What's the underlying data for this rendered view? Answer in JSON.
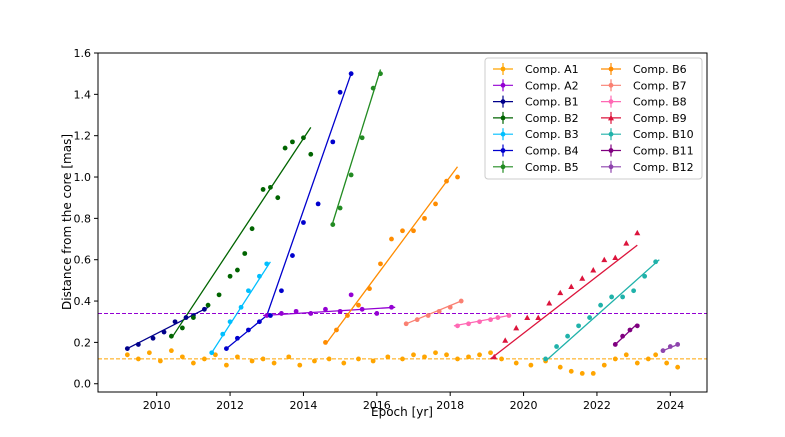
{
  "chart_data": {
    "type": "scatter",
    "title": "",
    "xlabel": "Epoch [yr]",
    "ylabel": "Distance from the core [mas]",
    "xlim": [
      2008.4,
      2025.0
    ],
    "ylim": [
      -0.04,
      1.6
    ],
    "xticks": [
      2010,
      2012,
      2014,
      2016,
      2018,
      2020,
      2022,
      2024
    ],
    "yticks": [
      0.0,
      0.2,
      0.4,
      0.6,
      0.8,
      1.0,
      1.2,
      1.4,
      1.6
    ],
    "grid": false,
    "legend_position": "top-right",
    "hlines": [
      {
        "y": 0.34,
        "color": "#9400d3",
        "style": "dashed"
      },
      {
        "y": 0.12,
        "color": "#ffa500",
        "style": "dashed"
      }
    ],
    "series": [
      {
        "name": "Comp. A1",
        "color": "#ffa500",
        "marker": "circle",
        "x": [
          2009.2,
          2009.5,
          2009.8,
          2010.1,
          2010.4,
          2010.7,
          2011.0,
          2011.3,
          2011.6,
          2011.9,
          2012.2,
          2012.6,
          2012.9,
          2013.2,
          2013.6,
          2013.9,
          2014.3,
          2014.7,
          2015.1,
          2015.5,
          2015.9,
          2016.3,
          2016.7,
          2017.0,
          2017.3,
          2017.6,
          2017.9,
          2018.2,
          2018.5,
          2018.8,
          2019.1,
          2019.4,
          2019.8,
          2020.2,
          2020.6,
          2021.0,
          2021.3,
          2021.6,
          2021.9,
          2022.2,
          2022.5,
          2022.8,
          2023.1,
          2023.4,
          2023.6,
          2023.9,
          2024.2
        ],
        "y": [
          0.14,
          0.12,
          0.15,
          0.11,
          0.16,
          0.13,
          0.1,
          0.12,
          0.14,
          0.09,
          0.13,
          0.11,
          0.12,
          0.1,
          0.13,
          0.09,
          0.11,
          0.12,
          0.1,
          0.12,
          0.11,
          0.13,
          0.12,
          0.14,
          0.13,
          0.15,
          0.14,
          0.12,
          0.13,
          0.14,
          0.15,
          0.12,
          0.1,
          0.09,
          0.11,
          0.08,
          0.06,
          0.05,
          0.05,
          0.09,
          0.12,
          0.14,
          0.1,
          0.12,
          0.14,
          0.1,
          0.08
        ],
        "fit": null
      },
      {
        "name": "Comp. A2",
        "color": "#9400d3",
        "marker": "circle",
        "x": [
          2013.0,
          2013.4,
          2013.8,
          2014.2,
          2014.6,
          2015.0,
          2015.3,
          2015.6,
          2016.0,
          2016.4
        ],
        "y": [
          0.33,
          0.34,
          0.35,
          0.34,
          0.36,
          0.35,
          0.43,
          0.36,
          0.34,
          0.37
        ],
        "fit": [
          [
            2012.9,
            0.33
          ],
          [
            2016.5,
            0.37
          ]
        ]
      },
      {
        "name": "Comp. B1",
        "color": "#00008b",
        "marker": "circle",
        "x": [
          2009.2,
          2009.5,
          2009.9,
          2010.2,
          2010.5,
          2010.8,
          2011.0,
          2011.3
        ],
        "y": [
          0.17,
          0.19,
          0.22,
          0.25,
          0.3,
          0.32,
          0.33,
          0.36
        ],
        "fit": [
          [
            2009.2,
            0.17
          ],
          [
            2011.4,
            0.37
          ]
        ]
      },
      {
        "name": "Comp. B2",
        "color": "#006400",
        "marker": "circle",
        "x": [
          2010.4,
          2010.7,
          2011.0,
          2011.4,
          2011.7,
          2012.0,
          2012.2,
          2012.4,
          2012.6,
          2012.9,
          2013.1,
          2013.3,
          2013.5,
          2013.7,
          2014.0,
          2014.2
        ],
        "y": [
          0.23,
          0.27,
          0.32,
          0.38,
          0.43,
          0.52,
          0.55,
          0.63,
          0.75,
          0.94,
          0.95,
          0.9,
          1.14,
          1.17,
          1.19,
          1.11
        ],
        "fit": [
          [
            2010.4,
            0.22
          ],
          [
            2014.2,
            1.24
          ]
        ]
      },
      {
        "name": "Comp. B3",
        "color": "#00bfff",
        "marker": "circle",
        "x": [
          2011.5,
          2011.8,
          2012.0,
          2012.3,
          2012.5,
          2012.8,
          2013.0
        ],
        "y": [
          0.15,
          0.24,
          0.3,
          0.37,
          0.45,
          0.52,
          0.58
        ],
        "fit": [
          [
            2011.5,
            0.15
          ],
          [
            2013.1,
            0.59
          ]
        ]
      },
      {
        "name": "Comp. B4",
        "color": "#0000cd",
        "marker": "circle",
        "x": [
          2011.9,
          2012.2,
          2012.5,
          2012.8,
          2013.1,
          2013.4,
          2013.7,
          2014.0,
          2014.4,
          2014.8,
          2015.0,
          2015.3
        ],
        "y": [
          0.17,
          0.22,
          0.26,
          0.3,
          0.33,
          0.45,
          0.62,
          0.78,
          0.87,
          1.17,
          1.41,
          1.5
        ],
        "fit": [
          [
            2011.9,
            0.17
          ],
          [
            2013.0,
            0.33
          ],
          [
            2015.3,
            1.5
          ]
        ]
      },
      {
        "name": "Comp. B5",
        "color": "#228b22",
        "marker": "circle",
        "x": [
          2014.8,
          2015.0,
          2015.3,
          2015.6,
          2015.9,
          2016.1
        ],
        "y": [
          0.77,
          0.85,
          1.01,
          1.19,
          1.43,
          1.5
        ],
        "fit": [
          [
            2014.8,
            0.78
          ],
          [
            2016.1,
            1.52
          ]
        ]
      },
      {
        "name": "Comp. B6",
        "color": "#ff8c00",
        "marker": "circle",
        "x": [
          2014.6,
          2014.9,
          2015.2,
          2015.5,
          2015.8,
          2016.1,
          2016.4,
          2016.7,
          2017.0,
          2017.3,
          2017.6,
          2017.9,
          2018.2
        ],
        "y": [
          0.2,
          0.26,
          0.33,
          0.38,
          0.46,
          0.58,
          0.7,
          0.74,
          0.74,
          0.8,
          0.87,
          0.98,
          1.0
        ],
        "fit": [
          [
            2014.6,
            0.19
          ],
          [
            2018.2,
            1.05
          ]
        ]
      },
      {
        "name": "Comp. B7",
        "color": "#fa8072",
        "marker": "circle",
        "x": [
          2016.8,
          2017.1,
          2017.4,
          2017.7,
          2018.0,
          2018.3
        ],
        "y": [
          0.29,
          0.31,
          0.33,
          0.35,
          0.37,
          0.4
        ],
        "fit": [
          [
            2016.8,
            0.29
          ],
          [
            2018.3,
            0.4
          ]
        ]
      },
      {
        "name": "Comp. B8",
        "color": "#ff69b4",
        "marker": "circle",
        "x": [
          2018.2,
          2018.5,
          2018.8,
          2019.1,
          2019.3,
          2019.6
        ],
        "y": [
          0.28,
          0.29,
          0.3,
          0.31,
          0.32,
          0.33
        ],
        "fit": [
          [
            2018.1,
            0.28
          ],
          [
            2019.6,
            0.33
          ]
        ]
      },
      {
        "name": "Comp. B9",
        "color": "#dc143c",
        "marker": "triangle",
        "x": [
          2019.2,
          2019.5,
          2019.8,
          2020.1,
          2020.4,
          2020.7,
          2021.0,
          2021.3,
          2021.6,
          2021.9,
          2022.2,
          2022.5,
          2022.8,
          2023.1
        ],
        "y": [
          0.13,
          0.21,
          0.27,
          0.32,
          0.32,
          0.39,
          0.44,
          0.47,
          0.51,
          0.55,
          0.6,
          0.61,
          0.68,
          0.73
        ],
        "fit": [
          [
            2019.1,
            0.12
          ],
          [
            2023.1,
            0.67
          ]
        ]
      },
      {
        "name": "Comp. B10",
        "color": "#20b2aa",
        "marker": "circle",
        "x": [
          2020.6,
          2020.9,
          2021.2,
          2021.5,
          2021.8,
          2022.1,
          2022.4,
          2022.7,
          2023.0,
          2023.3,
          2023.6
        ],
        "y": [
          0.12,
          0.18,
          0.23,
          0.28,
          0.32,
          0.38,
          0.42,
          0.42,
          0.45,
          0.52,
          0.59
        ],
        "fit": [
          [
            2020.6,
            0.11
          ],
          [
            2023.7,
            0.6
          ]
        ]
      },
      {
        "name": "Comp. B11",
        "color": "#800080",
        "marker": "circle",
        "x": [
          2022.5,
          2022.7,
          2022.9,
          2023.1
        ],
        "y": [
          0.19,
          0.23,
          0.26,
          0.28
        ],
        "fit": [
          [
            2022.5,
            0.19
          ],
          [
            2023.1,
            0.29
          ]
        ]
      },
      {
        "name": "Comp. B12",
        "color": "#8e44ad",
        "marker": "circle",
        "x": [
          2023.8,
          2024.0,
          2024.2
        ],
        "y": [
          0.16,
          0.18,
          0.19
        ],
        "fit": [
          [
            2023.8,
            0.16
          ],
          [
            2024.2,
            0.19
          ]
        ]
      }
    ]
  }
}
